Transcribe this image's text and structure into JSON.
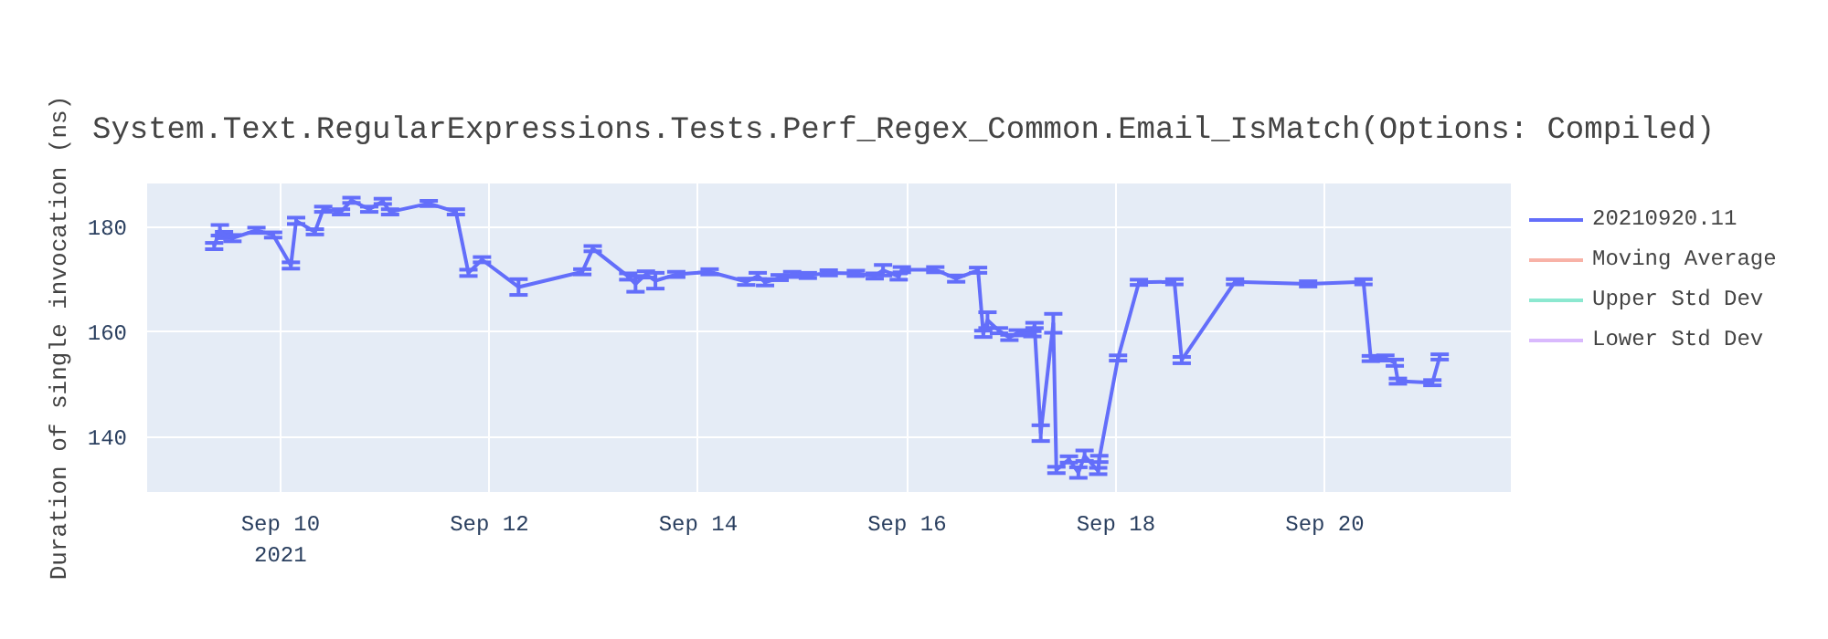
{
  "chart_data": {
    "type": "line",
    "title": "System.Text.RegularExpressions.Tests.Perf_Regex_Common.Email_IsMatch(Options: Compiled)",
    "ylabel": "Duration of single invocation (ns)",
    "xlim": [
      "2021-09-08T17:22",
      "2021-09-21T18:45"
    ],
    "xticks": [
      {
        "value": "2021-09-10",
        "label": "Sep 10\n2021"
      },
      {
        "value": "2021-09-12",
        "label": "Sep 12"
      },
      {
        "value": "2021-09-14",
        "label": "Sep 14"
      },
      {
        "value": "2021-09-16",
        "label": "Sep 16"
      },
      {
        "value": "2021-09-18",
        "label": "Sep 18"
      },
      {
        "value": "2021-09-20",
        "label": "Sep 20"
      }
    ],
    "ylim": [
      129.6,
      188.3
    ],
    "yticks": [
      140,
      160,
      180
    ],
    "grid": true,
    "legend": "right",
    "line_style": "solid",
    "marker": "none",
    "x": [
      "2021-09-09T08:46",
      "2021-09-09T10:05",
      "2021-09-09T11:02",
      "2021-09-09T12:58",
      "2021-09-09T18:29",
      "2021-09-09T22:19",
      "2021-09-10T02:24",
      "2021-09-10T03:36",
      "2021-09-10T07:55",
      "2021-09-10T09:50",
      "2021-09-10T13:55",
      "2021-09-10T16:19",
      "2021-09-10T20:24",
      "2021-09-10T23:31",
      "2021-09-11T01:12",
      "2021-09-11T10:05",
      "2021-09-11T16:19",
      "2021-09-11T19:12",
      "2021-09-11T22:19",
      "2021-09-12T06:43",
      "2021-09-12T21:22",
      "2021-09-12T23:46",
      "2021-09-13T07:55",
      "2021-09-13T09:36",
      "2021-09-13T12:00",
      "2021-09-13T14:10",
      "2021-09-13T18:58",
      "2021-09-14T02:38",
      "2021-09-14T11:02",
      "2021-09-14T13:41",
      "2021-09-14T15:22",
      "2021-09-14T18:43",
      "2021-09-14T21:36",
      "2021-09-15T01:12",
      "2021-09-15T06:00",
      "2021-09-15T12:14",
      "2021-09-15T16:34",
      "2021-09-15T18:29",
      "2021-09-15T22:05",
      "2021-09-15T22:48",
      "2021-09-16T06:29",
      "2021-09-16T11:17",
      "2021-09-16T16:19",
      "2021-09-16T17:31",
      "2021-09-16T18:29",
      "2021-09-16T21:07",
      "2021-09-16T23:31",
      "2021-09-17T01:26",
      "2021-09-17T04:48",
      "2021-09-17T05:17",
      "2021-09-17T06:43",
      "2021-09-17T09:36",
      "2021-09-17T10:19",
      "2021-09-17T13:12",
      "2021-09-17T15:22",
      "2021-09-17T16:48",
      "2021-09-17T19:55",
      "2021-09-17T20:10",
      "2021-09-18T00:29",
      "2021-09-18T05:17",
      "2021-09-18T13:26",
      "2021-09-18T15:07",
      "2021-09-19T03:22",
      "2021-09-19T20:10",
      "2021-09-20T08:53",
      "2021-09-20T10:34",
      "2021-09-20T13:55",
      "2021-09-20T16:05",
      "2021-09-20T16:48",
      "2021-09-21T00:43",
      "2021-09-21T02:24"
    ],
    "series": [
      {
        "name": "20210920.11",
        "color": "#636efa",
        "values": [
          176.4,
          179.4,
          178.5,
          177.9,
          179.4,
          178.5,
          172.7,
          181.2,
          179.1,
          183.4,
          182.9,
          185.1,
          183.4,
          184.9,
          182.9,
          184.5,
          182.9,
          171.3,
          173.8,
          168.6,
          171.5,
          175.9,
          170.6,
          169.2,
          171.0,
          169.8,
          171.0,
          171.5,
          169.6,
          170.7,
          169.5,
          170.4,
          171.0,
          170.8,
          171.3,
          171.2,
          170.7,
          171.8,
          170.6,
          171.9,
          171.9,
          170.2,
          171.8,
          159.7,
          162.3,
          160.3,
          159.0,
          159.9,
          159.7,
          161.3,
          140.8,
          161.7,
          133.8,
          135.8,
          133.3,
          136.5,
          133.6,
          135.9,
          155.1,
          169.5,
          169.6,
          154.7,
          169.6,
          169.2,
          169.6,
          155.0,
          155.1,
          154.2,
          150.7,
          150.4,
          155.3
        ],
        "errors": [
          0.6,
          1,
          0.6,
          0.6,
          0.5,
          0.5,
          0.6,
          0.6,
          0.5,
          0.5,
          0.5,
          0.5,
          0.5,
          0.5,
          0.5,
          0.5,
          0.5,
          0.6,
          0.5,
          1.5,
          0.5,
          0.5,
          0.6,
          1.5,
          0.6,
          1.5,
          0.5,
          0.5,
          0.6,
          0.6,
          0.6,
          0.5,
          0.5,
          0.5,
          0.5,
          0.5,
          0.5,
          1,
          0.6,
          0.5,
          0.5,
          0.6,
          0.5,
          0.6,
          1.5,
          0.5,
          0.5,
          0.5,
          0.5,
          0.5,
          1.5,
          1.8,
          0.6,
          0.6,
          1,
          1,
          0.6,
          0.6,
          0.5,
          0.5,
          0.5,
          0.6,
          0.5,
          0.5,
          0.5,
          0.5,
          0.5,
          0.6,
          0.5,
          0.5,
          0.5
        ]
      },
      {
        "name": "Moving Average",
        "color": "#ef553b",
        "values": [
          null,
          null,
          null,
          null,
          null,
          null,
          null,
          null,
          null,
          null,
          null,
          null,
          null,
          null,
          null,
          null,
          null,
          null,
          null,
          null,
          null,
          null,
          null,
          null,
          null,
          null,
          null,
          null,
          null,
          null,
          null,
          null,
          null,
          null,
          null,
          null,
          null,
          null,
          null,
          null,
          null,
          null,
          null,
          null,
          null,
          null,
          null,
          null,
          null,
          null,
          null,
          null,
          null,
          null,
          null,
          null,
          null,
          null,
          null,
          null,
          null,
          null,
          null,
          null,
          null,
          null,
          null,
          null,
          null,
          null,
          null
        ]
      },
      {
        "name": "Upper Std Dev",
        "color": "#00cc96",
        "values": [
          null,
          null,
          null,
          null,
          null,
          null,
          null,
          null,
          null,
          null,
          null,
          null,
          null,
          null,
          null,
          null,
          null,
          null,
          null,
          null,
          null,
          null,
          null,
          null,
          null,
          null,
          null,
          null,
          null,
          null,
          null,
          null,
          null,
          null,
          null,
          null,
          null,
          null,
          null,
          null,
          null,
          null,
          null,
          null,
          null,
          null,
          null,
          null,
          null,
          null,
          null,
          null,
          null,
          null,
          null,
          null,
          null,
          null,
          null,
          null,
          null,
          null,
          null,
          null,
          null,
          null,
          null,
          null,
          null,
          null,
          null
        ]
      },
      {
        "name": "Lower Std Dev",
        "color": "#ab63fa",
        "values": [
          null,
          null,
          null,
          null,
          null,
          null,
          null,
          null,
          null,
          null,
          null,
          null,
          null,
          null,
          null,
          null,
          null,
          null,
          null,
          null,
          null,
          null,
          null,
          null,
          null,
          null,
          null,
          null,
          null,
          null,
          null,
          null,
          null,
          null,
          null,
          null,
          null,
          null,
          null,
          null,
          null,
          null,
          null,
          null,
          null,
          null,
          null,
          null,
          null,
          null,
          null,
          null,
          null,
          null,
          null,
          null,
          null,
          null,
          null,
          null,
          null,
          null,
          null,
          null,
          null,
          null,
          null,
          null,
          null,
          null,
          null
        ]
      }
    ]
  }
}
